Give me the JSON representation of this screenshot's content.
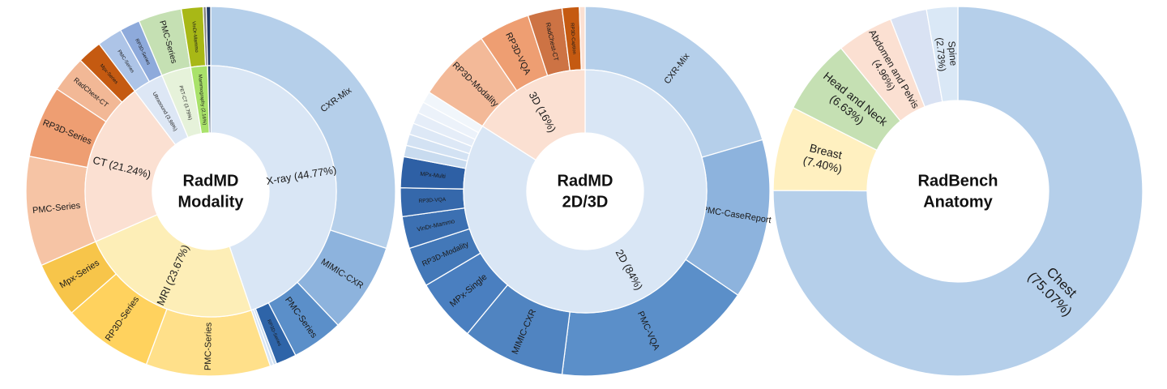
{
  "chart_data": [
    {
      "type": "sunburst",
      "title": [
        "RadMD",
        "Modality"
      ],
      "inner": [
        {
          "label": "X-ray (44.77%)",
          "value": 44.77,
          "color": "#d9e6f5"
        },
        {
          "label": "MRI (23.67%)",
          "value": 23.67,
          "color": "#fdeeb7"
        },
        {
          "label": "CT (21.24%)",
          "value": 21.24,
          "color": "#fbe0d2"
        },
        {
          "label": "Ultrasound (3.98%)",
          "value": 3.98,
          "color": "#dde7f5"
        },
        {
          "label": "PET-CT (3.79%)",
          "value": 3.79,
          "color": "#e6f2da"
        },
        {
          "label": "Mammography (2.16%)",
          "value": 2.16,
          "color": "#a9e26a"
        },
        {
          "label": "",
          "value": 0.39,
          "color": "#1f3864"
        }
      ],
      "outer": [
        {
          "label": "CXR-Mix",
          "value": 30.0,
          "color": "#b5cfea"
        },
        {
          "label": "MIMIC-CXR",
          "value": 7.9,
          "color": "#8db3dd"
        },
        {
          "label": "PMC-Series",
          "value": 4.5,
          "color": "#5b8fc9"
        },
        {
          "label": "RP3D-Series",
          "value": 1.8,
          "color": "#2e64a8"
        },
        {
          "label": "",
          "value": 0.27,
          "color": "#c8dbef"
        },
        {
          "label": "",
          "value": 0.3,
          "color": "#d8e5f4"
        },
        {
          "label": "PMC-Series",
          "value": 10.9,
          "color": "#ffe08a"
        },
        {
          "label": "RP3D-Series",
          "value": 7.9,
          "color": "#ffd25e"
        },
        {
          "label": "Mpx-Series",
          "value": 4.87,
          "color": "#f7c54a"
        },
        {
          "label": "PMC-Series",
          "value": 9.6,
          "color": "#f6c4a5"
        },
        {
          "label": "RP3D-Series",
          "value": 6.3,
          "color": "#ee9e72"
        },
        {
          "label": "RadChest-CT",
          "value": 3.2,
          "color": "#f2b896"
        },
        {
          "label": "Mpx-Series",
          "value": 2.14,
          "color": "#c55a11"
        },
        {
          "label": "PMC-Series",
          "value": 2.2,
          "color": "#adc4e7"
        },
        {
          "label": "RP3D-Series",
          "value": 1.78,
          "color": "#8eaadb"
        },
        {
          "label": "PMC-Series",
          "value": 3.79,
          "color": "#c5e0b3"
        },
        {
          "label": "VinDr-Mammo",
          "value": 1.9,
          "color": "#a8b816"
        },
        {
          "label": "",
          "value": 0.26,
          "color": "#7f7f7f"
        },
        {
          "label": "",
          "value": 0.39,
          "color": "#1f3864"
        }
      ]
    },
    {
      "type": "sunburst",
      "title": [
        "RadMD",
        "2D/3D"
      ],
      "inner": [
        {
          "label": "2D (84%)",
          "value": 84,
          "color": "#d9e6f5"
        },
        {
          "label": "3D (16%)",
          "value": 16,
          "color": "#fbe0d2"
        }
      ],
      "outer": [
        {
          "label": "CXR-Mix",
          "value": 20.5,
          "color": "#b5cfea"
        },
        {
          "label": "PMC-CaseReport",
          "value": 14.0,
          "color": "#8db3dd"
        },
        {
          "label": "PMC-VQA",
          "value": 17.5,
          "color": "#5b8fc9"
        },
        {
          "label": "MIMIC-CXR",
          "value": 9.0,
          "color": "#5084c1"
        },
        {
          "label": "MPx-Single",
          "value": 5.5,
          "color": "#4a7fc0"
        },
        {
          "label": "RP3D-Modality",
          "value": 3.5,
          "color": "#4378b8"
        },
        {
          "label": "VinDr-Mammo",
          "value": 2.8,
          "color": "#3c70b2"
        },
        {
          "label": "RP3D-VQA",
          "value": 2.5,
          "color": "#3568ab"
        },
        {
          "label": "MPx-Multi",
          "value": 2.7,
          "color": "#2e60a5"
        },
        {
          "label": "",
          "value": 1.0,
          "color": "#c8dbef"
        },
        {
          "label": "",
          "value": 1.0,
          "color": "#d3e2f3"
        },
        {
          "label": "",
          "value": 1.0,
          "color": "#dde8f6"
        },
        {
          "label": "",
          "value": 1.0,
          "color": "#e5edf8"
        },
        {
          "label": "",
          "value": 1.0,
          "color": "#ecf2fa"
        },
        {
          "label": "",
          "value": 1.0,
          "color": "#f1f6fb"
        },
        {
          "label": "RP3D-Modality",
          "value": 6.5,
          "color": "#f3b998"
        },
        {
          "label": "RP3D-VQA",
          "value": 4.5,
          "color": "#ee9e72"
        },
        {
          "label": "RadChest-CT",
          "value": 3.0,
          "color": "#cd7344"
        },
        {
          "label": "RP3D-Caption",
          "value": 1.5,
          "color": "#c55a11"
        },
        {
          "label": "",
          "value": 0.5,
          "color": "#fbe0d2"
        }
      ]
    },
    {
      "type": "donut",
      "title": [
        "RadBench",
        "Anatomy"
      ],
      "segments": [
        {
          "label": "Chest",
          "pct": "(75.07%)",
          "value": 75.07,
          "color": "#b5cfea"
        },
        {
          "label": "Breast",
          "pct": "(7.40%)",
          "value": 7.4,
          "color": "#fff0c0"
        },
        {
          "label": "Head and Neck",
          "pct": "(6.63%)",
          "value": 6.63,
          "color": "#c5e0b3"
        },
        {
          "label": "Abdomen and Pelvis",
          "pct": "(4.96%)",
          "value": 4.96,
          "color": "#fbe0d2"
        },
        {
          "label": "",
          "pct": "",
          "value": 3.21,
          "color": "#d9e2f3"
        },
        {
          "label": "Spine",
          "pct": "(2.73%)",
          "value": 2.73,
          "color": "#dae8f6"
        }
      ]
    }
  ]
}
